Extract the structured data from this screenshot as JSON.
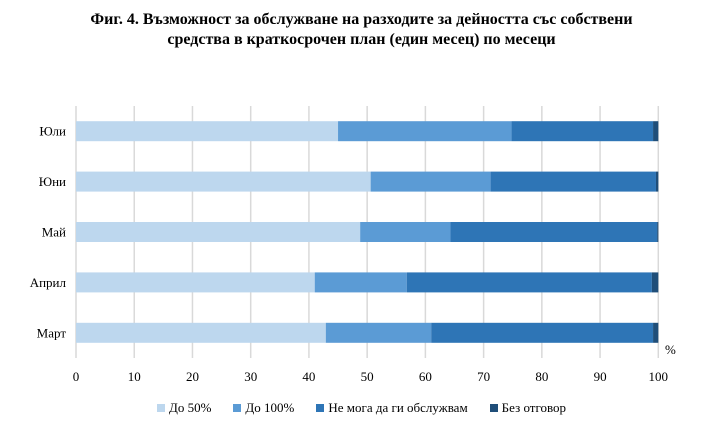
{
  "chart_data": {
    "type": "bar",
    "orientation": "horizontal",
    "stacked": true,
    "title_line1": "Фиг. 4. Възможност за обслужване на разходите за дейността със собствени",
    "title_line2": "средства в краткосрочен план (един месец) по месеци",
    "categories": [
      "Март",
      "Април",
      "Май",
      "Юни",
      "Юли"
    ],
    "series": [
      {
        "name": "До 50%",
        "color": "#BDD7EE",
        "values": [
          42.9,
          41.0,
          48.8,
          50.6,
          45.0
        ]
      },
      {
        "name": "До 100%",
        "color": "#5B9BD5",
        "values": [
          18.1,
          15.8,
          15.5,
          20.6,
          29.8
        ]
      },
      {
        "name": "Не мога да ги обслужвам",
        "color": "#2E75B6",
        "values": [
          38.1,
          42.1,
          35.5,
          28.4,
          24.3
        ]
      },
      {
        "name": "Без отговор",
        "color": "#1F4E79",
        "values": [
          0.9,
          1.1,
          0.2,
          0.4,
          0.9
        ]
      }
    ],
    "xlim": [
      0,
      100
    ],
    "xticks": [
      "0",
      "10",
      "20",
      "30",
      "40",
      "50",
      "60",
      "70",
      "80",
      "90",
      "100"
    ],
    "xunit": "%",
    "grid": true,
    "legend_position": "bottom"
  }
}
